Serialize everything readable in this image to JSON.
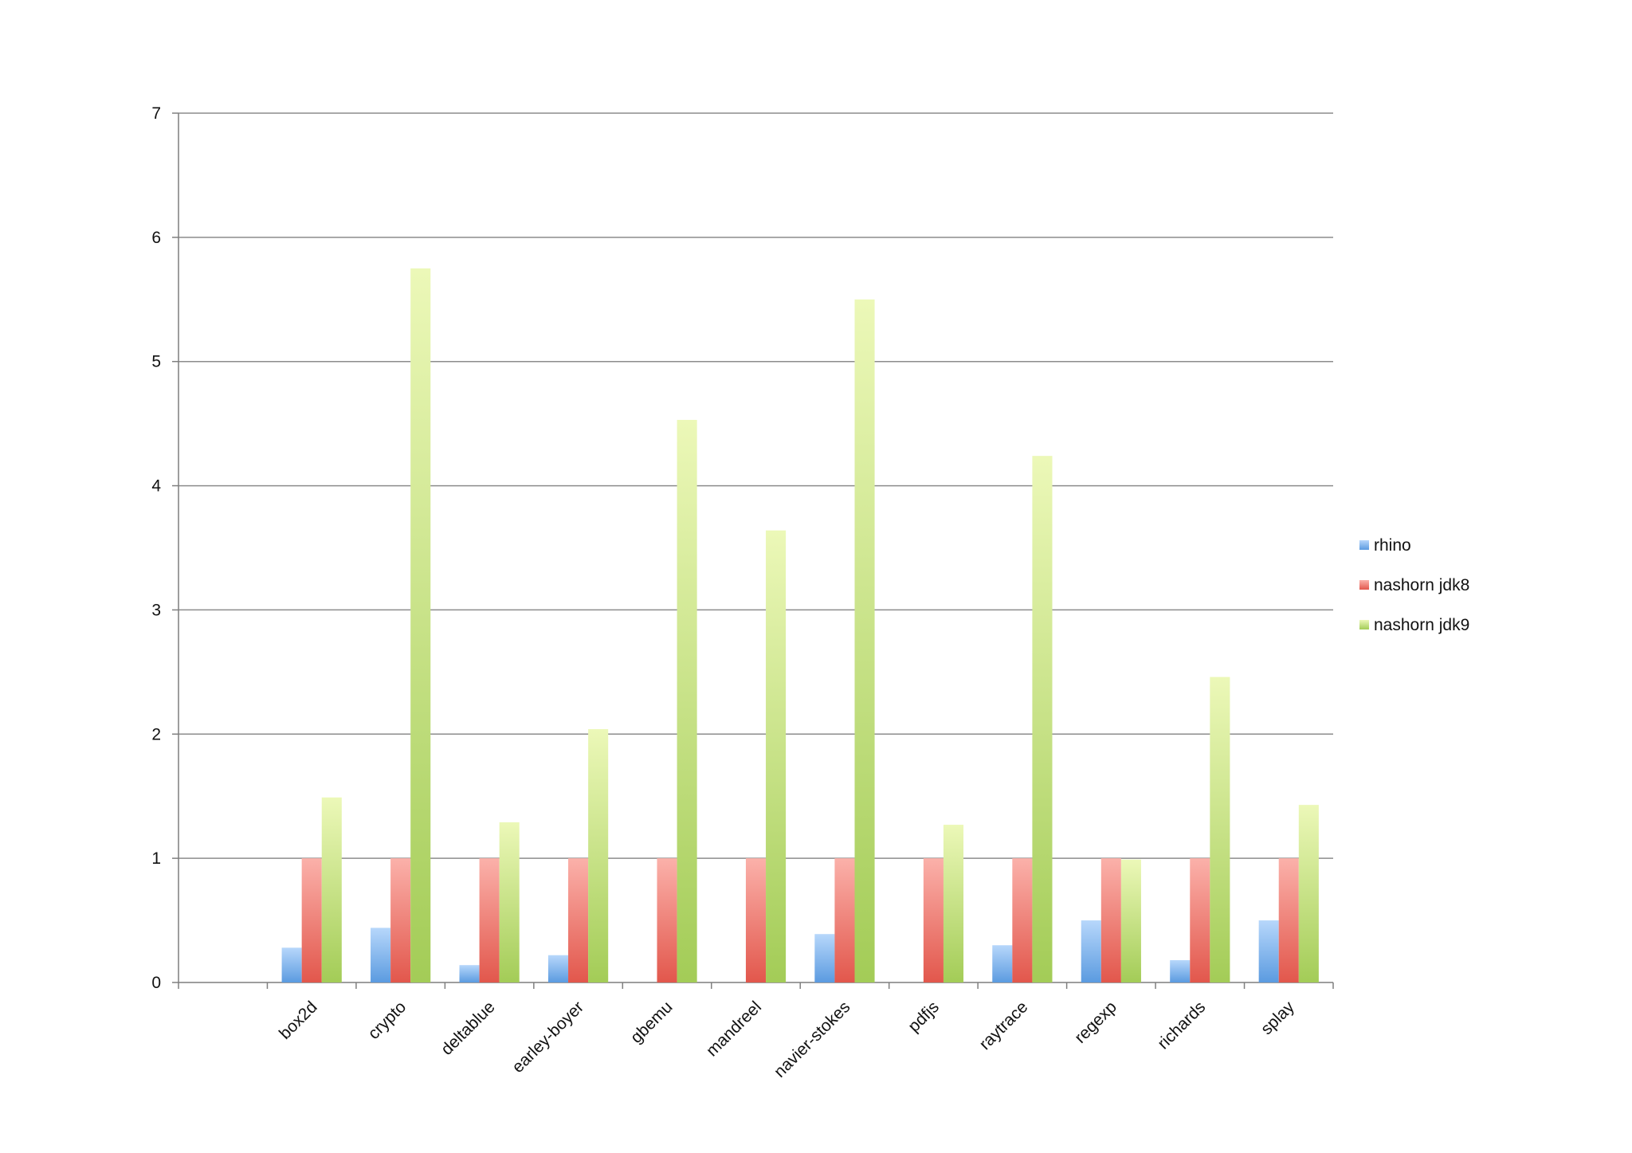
{
  "chart_data": {
    "type": "bar",
    "title": "",
    "xlabel": "",
    "ylabel": "",
    "ylim": [
      0,
      7
    ],
    "yticks": [
      0,
      1,
      2,
      3,
      4,
      5,
      6,
      7
    ],
    "grid": true,
    "legend_position": "right",
    "categories": [
      "box2d",
      "crypto",
      "deltablue",
      "earley-boyer",
      "gbemu",
      "mandreel",
      "navier-stokes",
      "pdfjs",
      "raytrace",
      "regexp",
      "richards",
      "splay"
    ],
    "series": [
      {
        "name": "rhino",
        "color": "#5b9be0",
        "values": [
          0.28,
          0.44,
          0.14,
          0.22,
          0,
          0,
          0.39,
          0,
          0.3,
          0.5,
          0.18,
          0.5
        ]
      },
      {
        "name": "nashorn jdk8",
        "color": "#e2574c",
        "values": [
          1,
          1,
          1,
          1,
          1,
          1,
          1,
          1,
          1,
          1,
          1,
          1
        ]
      },
      {
        "name": "nashorn jdk9",
        "color": "#a3cc57",
        "values": [
          1.49,
          5.75,
          1.29,
          2.04,
          4.53,
          3.64,
          5.5,
          1.27,
          4.24,
          0.99,
          2.46,
          1.43
        ]
      }
    ]
  }
}
